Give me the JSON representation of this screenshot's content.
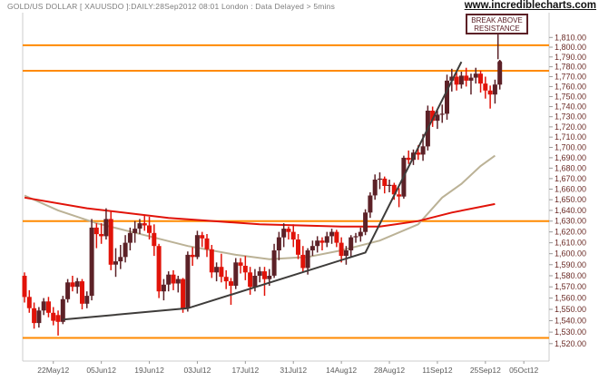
{
  "colors": {
    "background": "#FFFFFF",
    "title_text": "#7D7D7D",
    "watermark_text": "#111111",
    "axis_line": "#CCCCCC",
    "tick": "#9B9B9B",
    "y_label": "#6B2B26",
    "x_label": "#5A5A5A",
    "up_candle": "#5C2127",
    "down_candle": "#E11309",
    "resistance_line": "#FF8A00",
    "trendline": "#3E3C3A",
    "ma_tan": "#BBB296",
    "ma_red": "#E11309",
    "annotation": "#5C2127"
  },
  "header": {
    "title": "GOLD/US DOLLAR [ XAUUSDO ]:DAILY:28Sep2012 08:01 London : Data Delayed > 5mins",
    "watermark": "www.incrediblecharts.com"
  },
  "annotation": {
    "line1": "BREAK ABOVE",
    "line2": "RESISTANCE"
  },
  "chart_data": {
    "type": "candlestick",
    "title": "GOLD/US DOLLAR [ XAUUSDO ] DAILY",
    "instrument": "GOLD/US DOLLAR",
    "symbol": "XAUUSDO",
    "timeframe": "DAILY",
    "y_axis": {
      "min": 1520,
      "max": 1810,
      "step": 10,
      "scale": "log",
      "label_format": "1,810.00",
      "side": "right"
    },
    "x_ticks": [
      {
        "day": 6,
        "label": "22May12"
      },
      {
        "day": 16,
        "label": "05Jun12"
      },
      {
        "day": 26,
        "label": "19Jun12"
      },
      {
        "day": 36,
        "label": "03Jul12"
      },
      {
        "day": 46,
        "label": "17Jul12"
      },
      {
        "day": 56,
        "label": "31Jul12"
      },
      {
        "day": 66,
        "label": "14Aug12"
      },
      {
        "day": 76,
        "label": "28Aug12"
      },
      {
        "day": 86,
        "label": "11Sep12"
      },
      {
        "day": 96,
        "label": "25Sep12"
      },
      {
        "day": 104,
        "label": "05Oct12"
      }
    ],
    "horizontal_lines": [
      1802,
      1776,
      1630,
      1525
    ],
    "candles": [
      [
        1580,
        1583,
        1556,
        1561
      ],
      [
        1561,
        1567,
        1547,
        1551
      ],
      [
        1551,
        1556,
        1533,
        1538
      ],
      [
        1538,
        1552,
        1534,
        1549
      ],
      [
        1549,
        1560,
        1545,
        1557
      ],
      [
        1557,
        1561,
        1543,
        1547
      ],
      [
        1547,
        1552,
        1536,
        1540
      ],
      [
        1545,
        1549,
        1527,
        1539
      ],
      [
        1539,
        1562,
        1537,
        1559
      ],
      [
        1559,
        1577,
        1556,
        1574
      ],
      [
        1574,
        1580,
        1566,
        1570
      ],
      [
        1570,
        1578,
        1564,
        1575
      ],
      [
        1575,
        1577,
        1550,
        1555
      ],
      [
        1555,
        1566,
        1551,
        1562
      ],
      [
        1562,
        1632,
        1558,
        1624
      ],
      [
        1624,
        1628,
        1605,
        1618
      ],
      [
        1618,
        1628,
        1609,
        1616
      ],
      [
        1616,
        1642,
        1613,
        1632
      ],
      [
        1632,
        1639,
        1585,
        1590
      ],
      [
        1590,
        1605,
        1579,
        1593
      ],
      [
        1593,
        1608,
        1586,
        1597
      ],
      [
        1597,
        1617,
        1592,
        1610
      ],
      [
        1610,
        1624,
        1603,
        1619
      ],
      [
        1619,
        1630,
        1610,
        1623
      ],
      [
        1623,
        1632,
        1618,
        1628
      ],
      [
        1628,
        1635,
        1621,
        1626
      ],
      [
        1626,
        1634,
        1613,
        1619
      ],
      [
        1619,
        1627,
        1598,
        1607
      ],
      [
        1607,
        1609,
        1560,
        1566
      ],
      [
        1566,
        1577,
        1558,
        1572
      ],
      [
        1572,
        1584,
        1566,
        1581
      ],
      [
        1581,
        1585,
        1567,
        1573
      ],
      [
        1573,
        1580,
        1565,
        1577
      ],
      [
        1577,
        1578,
        1547,
        1551
      ],
      [
        1551,
        1602,
        1548,
        1599
      ],
      [
        1599,
        1606,
        1589,
        1597
      ],
      [
        1597,
        1621,
        1595,
        1617
      ],
      [
        1617,
        1620,
        1606,
        1614
      ],
      [
        1614,
        1618,
        1597,
        1604
      ],
      [
        1604,
        1608,
        1578,
        1583
      ],
      [
        1583,
        1592,
        1575,
        1588
      ],
      [
        1588,
        1600,
        1574,
        1579
      ],
      [
        1579,
        1585,
        1568,
        1575
      ],
      [
        1575,
        1578,
        1554,
        1571
      ],
      [
        1571,
        1596,
        1568,
        1592
      ],
      [
        1592,
        1596,
        1582,
        1589
      ],
      [
        1589,
        1598,
        1576,
        1583
      ],
      [
        1583,
        1588,
        1563,
        1570
      ],
      [
        1570,
        1586,
        1566,
        1580
      ],
      [
        1580,
        1588,
        1574,
        1584
      ],
      [
        1584,
        1588,
        1562,
        1577
      ],
      [
        1577,
        1586,
        1571,
        1580
      ],
      [
        1580,
        1609,
        1578,
        1603
      ],
      [
        1603,
        1620,
        1594,
        1615
      ],
      [
        1615,
        1628,
        1606,
        1623
      ],
      [
        1623,
        1625,
        1613,
        1620
      ],
      [
        1620,
        1627,
        1606,
        1613
      ],
      [
        1613,
        1618,
        1595,
        1599
      ],
      [
        1599,
        1607,
        1583,
        1587
      ],
      [
        1587,
        1605,
        1581,
        1603
      ],
      [
        1603,
        1612,
        1598,
        1607
      ],
      [
        1607,
        1616,
        1601,
        1612
      ],
      [
        1612,
        1615,
        1603,
        1610
      ],
      [
        1610,
        1620,
        1606,
        1616
      ],
      [
        1616,
        1623,
        1609,
        1620
      ],
      [
        1620,
        1622,
        1606,
        1610
      ],
      [
        1610,
        1615,
        1592,
        1598
      ],
      [
        1598,
        1607,
        1590,
        1603
      ],
      [
        1603,
        1617,
        1597,
        1615
      ],
      [
        1615,
        1619,
        1610,
        1616
      ],
      [
        1616,
        1624,
        1611,
        1620
      ],
      [
        1620,
        1641,
        1617,
        1638
      ],
      [
        1638,
        1657,
        1633,
        1654
      ],
      [
        1654,
        1674,
        1650,
        1669
      ],
      [
        1669,
        1676,
        1660,
        1670
      ],
      [
        1670,
        1672,
        1656,
        1663
      ],
      [
        1663,
        1669,
        1657,
        1664
      ],
      [
        1664,
        1666,
        1650,
        1655
      ],
      [
        1655,
        1661,
        1643,
        1653
      ],
      [
        1653,
        1692,
        1651,
        1690
      ],
      [
        1690,
        1697,
        1684,
        1688
      ],
      [
        1688,
        1698,
        1683,
        1695
      ],
      [
        1695,
        1702,
        1688,
        1693
      ],
      [
        1693,
        1713,
        1687,
        1701
      ],
      [
        1701,
        1741,
        1697,
        1736
      ],
      [
        1736,
        1740,
        1720,
        1726
      ],
      [
        1726,
        1736,
        1718,
        1732
      ],
      [
        1732,
        1742,
        1724,
        1733
      ],
      [
        1733,
        1772,
        1727,
        1766
      ],
      [
        1766,
        1778,
        1755,
        1770
      ],
      [
        1770,
        1774,
        1756,
        1762
      ],
      [
        1762,
        1775,
        1758,
        1771
      ],
      [
        1771,
        1779,
        1760,
        1766
      ],
      [
        1766,
        1773,
        1752,
        1769
      ],
      [
        1769,
        1779,
        1763,
        1773
      ],
      [
        1773,
        1776,
        1754,
        1763
      ],
      [
        1763,
        1770,
        1748,
        1756
      ],
      [
        1756,
        1761,
        1738,
        1752
      ],
      [
        1752,
        1767,
        1743,
        1762
      ],
      [
        1762,
        1787,
        1757,
        1784
      ]
    ],
    "trendline_points": [
      [
        8,
        1541
      ],
      [
        34,
        1551
      ],
      [
        71,
        1601
      ],
      [
        91,
        1785
      ]
    ],
    "moving_averages": [
      {
        "name": "ma-tan",
        "color_key": "ma_tan",
        "points": [
          [
            0,
            1654
          ],
          [
            7,
            1640
          ],
          [
            15,
            1628
          ],
          [
            25,
            1617
          ],
          [
            34,
            1607
          ],
          [
            44,
            1599
          ],
          [
            51,
            1595
          ],
          [
            59,
            1597
          ],
          [
            66,
            1603
          ],
          [
            74,
            1612
          ],
          [
            82,
            1627
          ],
          [
            87,
            1652
          ],
          [
            91,
            1665
          ],
          [
            95,
            1682
          ],
          [
            98,
            1692
          ]
        ]
      },
      {
        "name": "ma-red",
        "color_key": "ma_red",
        "points": [
          [
            0,
            1652
          ],
          [
            13,
            1642
          ],
          [
            30,
            1633
          ],
          [
            49,
            1627
          ],
          [
            66,
            1625
          ],
          [
            74,
            1625
          ],
          [
            82,
            1630
          ],
          [
            89,
            1638
          ],
          [
            98,
            1646
          ]
        ]
      }
    ],
    "marker_dot": {
      "day": 99,
      "value": 1784
    },
    "legend_position": "none",
    "grid": false
  }
}
